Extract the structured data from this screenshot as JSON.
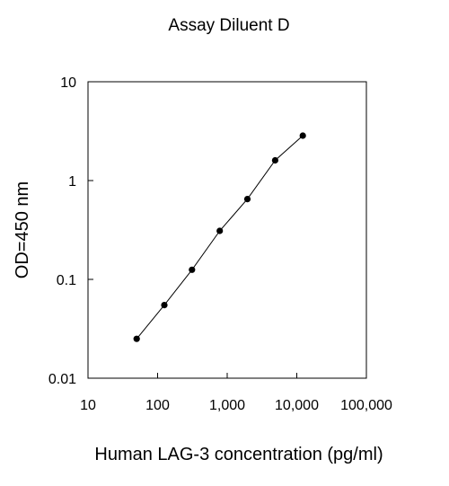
{
  "chart_data": {
    "type": "line",
    "title": "Assay Diluent D",
    "xlabel": "Human LAG-3 concentration (pg/ml)",
    "ylabel": "OD=450 nm",
    "x_scale": "log",
    "y_scale": "log",
    "xlim": [
      10,
      100000
    ],
    "ylim": [
      0.01,
      10
    ],
    "x_ticks": [
      10,
      100,
      1000,
      10000,
      100000
    ],
    "x_tick_labels": [
      "10",
      "100",
      "1,000",
      "10,000",
      "100,000"
    ],
    "y_ticks": [
      0.01,
      0.1,
      1,
      10
    ],
    "y_tick_labels": [
      "0.01",
      "0.1",
      "1",
      "10"
    ],
    "grid": false,
    "legend": "none",
    "series": [
      {
        "x": [
          50,
          125,
          312,
          781,
          1953,
          4883,
          12207
        ],
        "y": [
          0.025,
          0.055,
          0.125,
          0.31,
          0.65,
          1.6,
          2.85
        ]
      }
    ],
    "colors": {
      "line": "#000000",
      "marker": "#000000",
      "axis": "#000000",
      "background": "#ffffff"
    }
  }
}
